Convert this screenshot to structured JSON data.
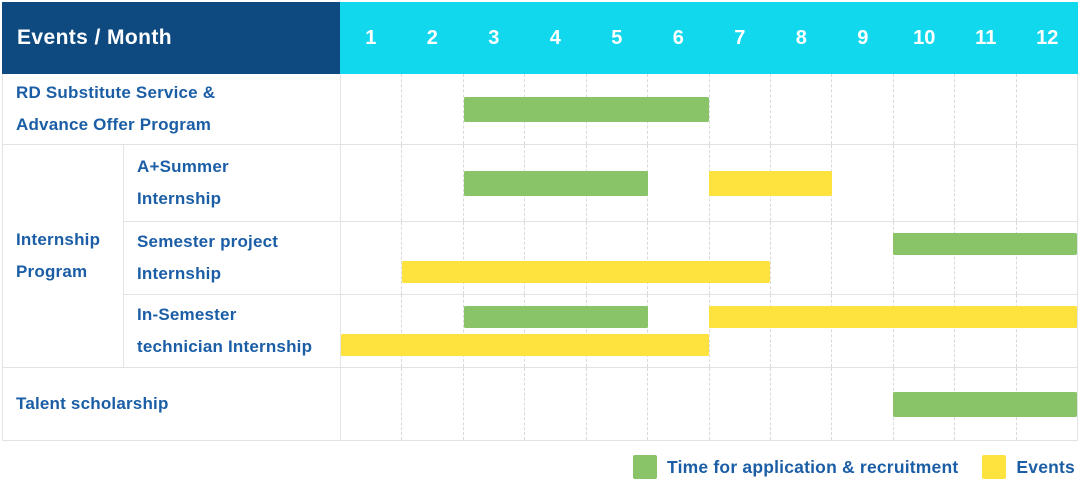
{
  "header": {
    "title": "Events / Month",
    "months": [
      "1",
      "2",
      "3",
      "4",
      "5",
      "6",
      "7",
      "8",
      "9",
      "10",
      "11",
      "12"
    ]
  },
  "colors": {
    "header_bg": "#0e4a80",
    "header_text": "#ffffff",
    "months_bg": "#12d8ee",
    "green": "#8ac468",
    "yellow": "#fee23e",
    "label_text": "#1b5ea6",
    "grid_line": "#e3e3e3",
    "month_line": "#d9d9d9"
  },
  "legend": {
    "items": [
      {
        "label": "Time for application & recruitment",
        "color_key": "green"
      },
      {
        "label": "Events",
        "color_key": "yellow"
      }
    ]
  },
  "chart_data": {
    "type": "bar",
    "subtype": "gantt",
    "title": "Events / Month",
    "x_label": "Month",
    "x_ticks": [
      1,
      2,
      3,
      4,
      5,
      6,
      7,
      8,
      9,
      10,
      11,
      12
    ],
    "x_range": [
      1,
      12
    ],
    "grid": true,
    "legend_position": "bottom-right",
    "series_legend": [
      {
        "name": "Time for application & recruitment",
        "color": "#8ac468"
      },
      {
        "name": "Events",
        "color": "#fee23e"
      }
    ],
    "group_label": "Internship Program",
    "group_display": "Internship\nProgram",
    "rows": [
      {
        "label": "RD Substitute Service &\nAdvance Offer Program",
        "group": "",
        "lines": [
          [
            {
              "series": "Time for application & recruitment",
              "start_month": 3,
              "end_month": 6
            }
          ]
        ]
      },
      {
        "label": "A+Summer\nInternship",
        "group": "Internship Program",
        "lines": [
          [
            {
              "series": "Time for application & recruitment",
              "start_month": 3,
              "end_month": 5
            },
            {
              "series": "Events",
              "start_month": 7,
              "end_month": 8
            }
          ]
        ]
      },
      {
        "label": "Semester project\nInternship",
        "group": "Internship Program",
        "lines": [
          [
            {
              "series": "Time for application & recruitment",
              "start_month": 10,
              "end_month": 12
            }
          ],
          [
            {
              "series": "Events",
              "start_month": 2,
              "end_month": 7
            }
          ]
        ]
      },
      {
        "label": "In-Semester\ntechnician Internship",
        "group": "Internship Program",
        "lines": [
          [
            {
              "series": "Time for application & recruitment",
              "start_month": 3,
              "end_month": 5
            },
            {
              "series": "Events",
              "start_month": 7,
              "end_month": 12
            }
          ],
          [
            {
              "series": "Events",
              "start_month": 1,
              "end_month": 6
            }
          ]
        ]
      },
      {
        "label": "Talent scholarship",
        "group": "",
        "lines": [
          [
            {
              "series": "Time for application & recruitment",
              "start_month": 10,
              "end_month": 12
            }
          ]
        ]
      }
    ]
  }
}
